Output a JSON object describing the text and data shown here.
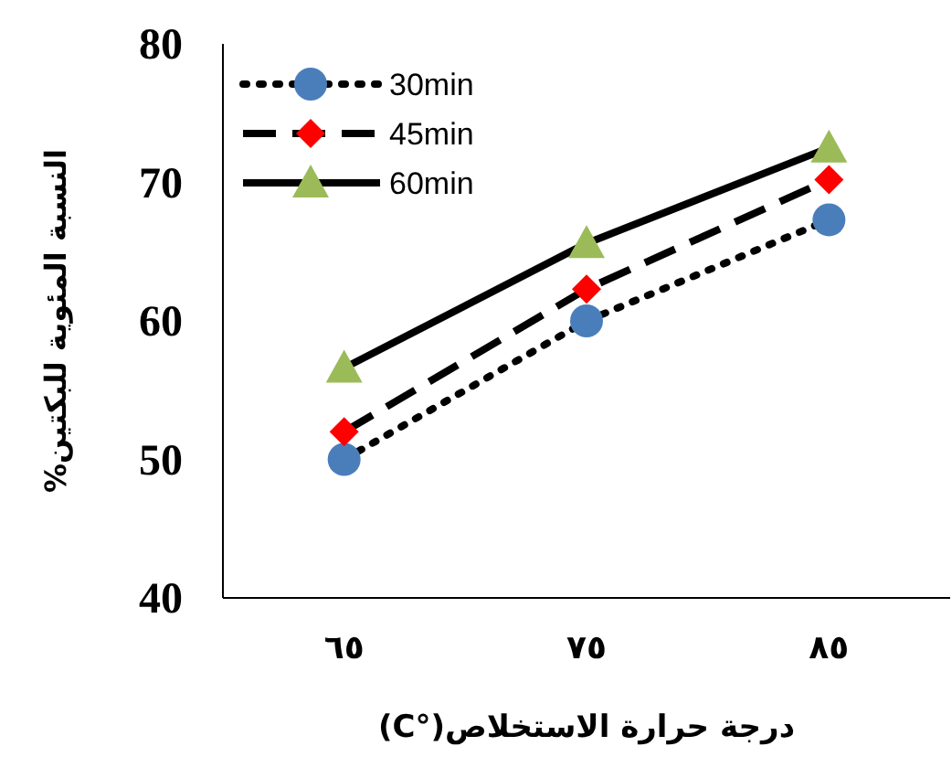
{
  "chart_data": {
    "type": "line",
    "xlabel": "درجة حرارة الاستخلاص(°C)",
    "ylabel": "النسبة المئوية للبكتين%",
    "categories": [
      "٦٥",
      "٧٥",
      "٨٥"
    ],
    "ylim": [
      40,
      80
    ],
    "yticks": [
      40,
      50,
      60,
      70,
      80
    ],
    "grid": false,
    "legend": "top left",
    "series": [
      {
        "name": "30min",
        "color": "#4a7ebb",
        "marker": "circle",
        "line_style": "dotted",
        "values": [
          50,
          60,
          67.3
        ]
      },
      {
        "name": "45min",
        "color": "#ff0000",
        "marker": "diamond",
        "line_style": "dashed",
        "values": [
          52,
          62.3,
          70.2
        ]
      },
      {
        "name": "60min",
        "color": "#9bbb59",
        "marker": "triangle",
        "line_style": "solid",
        "values": [
          56.6,
          65.6,
          72.5
        ]
      }
    ]
  }
}
